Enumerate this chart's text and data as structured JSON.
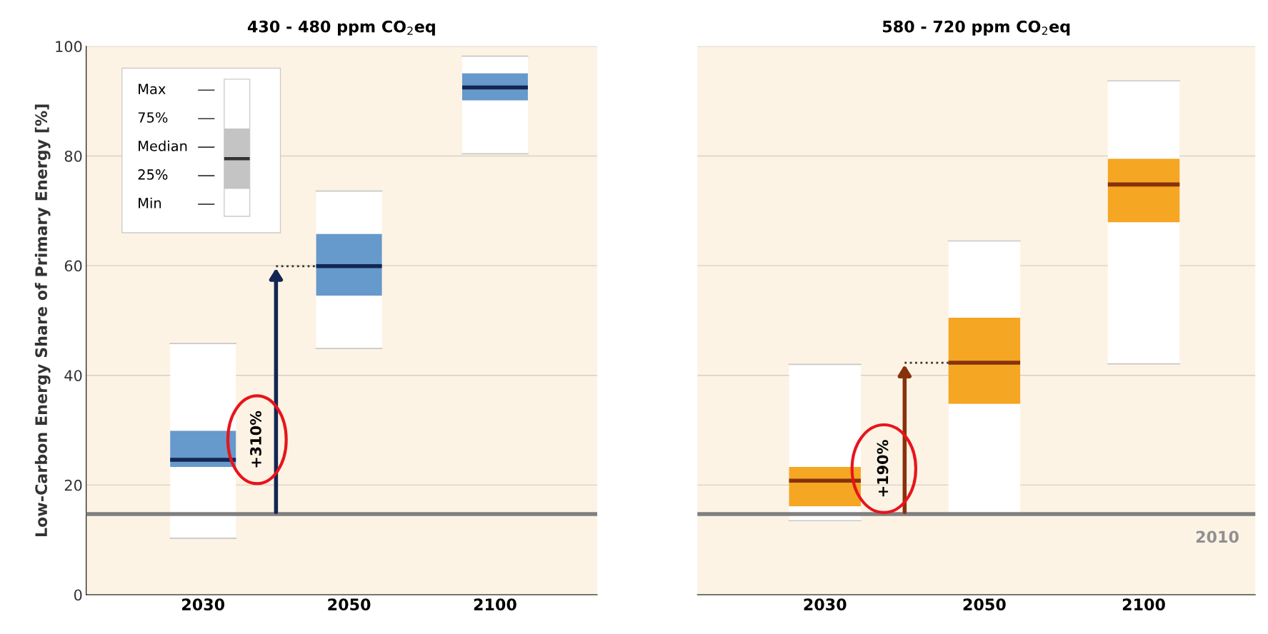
{
  "chart_data": [
    {
      "type": "box",
      "title": "430 - 480 ppm CO$_{2}$eq",
      "ylabel": "Low-Carbon Energy Share of Primary Energy [%]",
      "categories": [
        "2030",
        "2050",
        "2100"
      ],
      "series": [
        {
          "color": "#6699cc",
          "boxes": [
            {
              "low": 10.3,
              "q1": 23.3,
              "median": 24.6,
              "q3": 29.9,
              "high": 45.8
            },
            {
              "low": 44.9,
              "q1": 54.5,
              "median": 59.9,
              "q3": 65.8,
              "high": 73.6
            },
            {
              "low": 80.4,
              "q1": 90.1,
              "median": 92.5,
              "q3": 95.1,
              "high": 98.2
            }
          ]
        }
      ],
      "ylim": [
        0,
        100
      ],
      "yticks": [
        0,
        20,
        40,
        60,
        80,
        100
      ],
      "grid": "y",
      "ref_lines": [
        {
          "axis": "y",
          "value": 14.7,
          "color": "#808080"
        }
      ],
      "annotations": [
        "Max",
        "75%",
        "Median",
        "25%",
        "Min",
        "+310%"
      ]
    },
    {
      "type": "box",
      "title": "580 - 720 ppm CO$_{2}$eq",
      "categories": [
        "2030",
        "2050",
        "2100"
      ],
      "series": [
        {
          "color": "#f5a623",
          "boxes": [
            {
              "low": 13.5,
              "q1": 16.1,
              "median": 20.8,
              "q3": 23.3,
              "high": 42.0
            },
            {
              "low": 14.6,
              "q1": 34.8,
              "median": 42.3,
              "q3": 50.5,
              "high": 64.5
            },
            {
              "low": 42.1,
              "q1": 67.9,
              "median": 74.8,
              "q3": 79.5,
              "high": 93.7
            }
          ]
        }
      ],
      "ylim": [
        0,
        100
      ],
      "yticks": [
        0,
        20,
        40,
        60,
        80,
        100
      ],
      "grid": "y",
      "tick_labels": "x",
      "ref_lines": [
        {
          "axis": "y",
          "value": 14.7,
          "color": "#808080"
        }
      ],
      "annotations": [
        "+190%",
        {
          "text": "2010",
          "y": 14.7
        }
      ]
    }
  ]
}
